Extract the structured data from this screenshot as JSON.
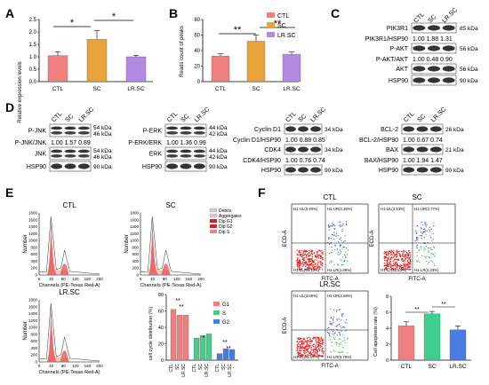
{
  "panels": {
    "A": {
      "letter": "A",
      "ylabel": "Relative expression levels",
      "yticks": [
        "0.0",
        "0.5",
        "1.0",
        "1.5",
        "2.0",
        "2.5"
      ],
      "categories": [
        "CTL",
        "SC",
        "LR.SC"
      ],
      "sig": [
        "*",
        "*"
      ]
    },
    "B": {
      "letter": "B",
      "ylabel": "Reads count of peaks",
      "yticks": [
        "0",
        "20",
        "40",
        "60",
        "80"
      ],
      "categories": [
        "CTL",
        "SC",
        "LR.SC"
      ],
      "legend": [
        "CTL",
        "SC",
        "LR.SC"
      ],
      "sig": [
        "**",
        "**"
      ]
    },
    "C": {
      "letter": "C",
      "lanes": [
        "CTL",
        "SC",
        "LR.SC"
      ],
      "rows": [
        {
          "label": "PIK3R1",
          "kda": "85 kDa"
        },
        {
          "label": "PIK3R1/HSP90",
          "values": "1.00  1.88  1.31"
        },
        {
          "label": "P-AKT",
          "kda": "56 kDa"
        },
        {
          "label": "P-AKT/AKT",
          "values": "1.00  0.48  0.90"
        },
        {
          "label": "AKT",
          "kda": "56 kDa"
        },
        {
          "label": "HSP90",
          "kda": "90 kDa"
        }
      ]
    },
    "D": {
      "letter": "D",
      "lanes": [
        "CTL",
        "SC",
        "LR.SC"
      ],
      "g1": {
        "rows": [
          {
            "label": "P-JNK",
            "kda": "54 kDa",
            "kda2": "46 kDa"
          },
          {
            "label": "P-JNK/JNK",
            "values": "1.00  1.57  0.89"
          },
          {
            "label": "JNK",
            "kda": "54 kDa",
            "kda2": "46 kDa"
          },
          {
            "label": "HSP90",
            "kda": "90 kDa"
          }
        ]
      },
      "g2": {
        "rows": [
          {
            "label": "P-ERK",
            "kda": "44 kDa",
            "kda2": "42 kDa"
          },
          {
            "label": "P-ERK/ERK",
            "values": "1.00  1.36  0.99"
          },
          {
            "label": "ERK",
            "kda": "44 kDa",
            "kda2": "42 kDa"
          },
          {
            "label": "HSP90",
            "kda": "90 kDa"
          }
        ]
      },
      "g3": {
        "rows": [
          {
            "label": "Cyclin D1",
            "kda": "34 kDa"
          },
          {
            "label": "Cyclin D1/HSP90",
            "values": "1.00  0.88  0.85"
          },
          {
            "label": "CDK4",
            "kda": "34 kDa"
          },
          {
            "label": "CDK4/HSP90",
            "values": "1.00  0.76  0.74"
          },
          {
            "label": "HSP90",
            "kda": "90 kDa"
          }
        ]
      },
      "g4": {
        "rows": [
          {
            "label": "BCL-2",
            "kda": "26 kDa"
          },
          {
            "label": "BCL-2/HSP90",
            "values": "1.00  0.67  0.74"
          },
          {
            "label": "BAX",
            "kda": "21 kDa"
          },
          {
            "label": "BAX/HSP90",
            "values": "1.00  1.94  1.47"
          },
          {
            "label": "HSP90",
            "kda": "90 kDa"
          }
        ]
      }
    },
    "E": {
      "letter": "E",
      "titles": [
        "CTL",
        "SC",
        "LR.SC"
      ],
      "ylabel": "Number",
      "xlabel": "Channels (PE-Texas Red-A)",
      "yticks": [
        "0",
        "200",
        "400",
        "600",
        "800",
        "1000",
        "1200",
        "1400",
        "1600",
        "1800"
      ],
      "xticks": [
        "0",
        "40",
        "80",
        "120",
        "160",
        "200"
      ],
      "legend": [
        "Debris",
        "Aggregates",
        "Dip G1",
        "Dip G2",
        "Dip S"
      ],
      "bar_ylabel": "cell cycle distribution (%)",
      "bar_yticks": [
        "0",
        "20",
        "40",
        "60",
        "80"
      ],
      "bar_legend": [
        "G1",
        "S",
        "G2"
      ],
      "bar_sig": [
        "**",
        "**",
        "*",
        "**",
        "**"
      ],
      "bar_xcats": [
        "CTL",
        "SC",
        "LR.SC"
      ]
    },
    "F": {
      "letter": "F",
      "titles": [
        "CTL",
        "SC",
        "LR.SC"
      ],
      "ylabel": "ECD-A",
      "xlabel": "FITC-A",
      "quadrants": [
        [
          "H1-UL(0.90%)",
          "H1-UR(2.26%)",
          "H1-LL(95.15%)",
          "H1-LR(1.69%)"
        ],
        [
          "H1-UL(2.53%)",
          "H1-UR(3.77%)",
          "H1-LL(91.33%)",
          "H1-LR(2.33%)"
        ],
        [
          "H1-UL(2.06%)",
          "H1-UR(2.59%)",
          "H1-LL(91.57%)",
          "H1-LR(0.79%)"
        ]
      ],
      "bar_ylabel": "Cell apoptosis rate (%)",
      "bar_yticks": [
        "0",
        "2",
        "4",
        "6",
        "8"
      ],
      "bar_sig": [
        "**",
        "**"
      ],
      "bar_xcats": [
        "CTL",
        "SC",
        "LR.SC"
      ]
    }
  },
  "colors": {
    "ctl": "#f08080",
    "sc": "#e8a33a",
    "lrsc": "#b48ae0",
    "g1": "#f08080",
    "s": "#4ec98a",
    "g2": "#4a7be0",
    "f_sc": "#3ecf8e",
    "f_lrsc": "#4a7be0"
  },
  "chart_data": [
    {
      "type": "bar",
      "panel": "A",
      "categories": [
        "CTL",
        "SC",
        "LR.SC"
      ],
      "values": [
        1.05,
        1.7,
        1.0
      ],
      "errors": [
        0.15,
        0.35,
        0.06
      ],
      "ylim": [
        0,
        2.5
      ],
      "ylabel": "Relative expression levels"
    },
    {
      "type": "bar",
      "panel": "B",
      "categories": [
        "CTL",
        "SC",
        "LR.SC"
      ],
      "values": [
        33,
        52,
        35
      ],
      "errors": [
        3,
        8,
        3
      ],
      "ylim": [
        0,
        80
      ],
      "ylabel": "Reads count of peaks"
    },
    {
      "type": "bar",
      "panel": "E",
      "categories": [
        "CTL",
        "SC",
        "LR.SC"
      ],
      "series": [
        {
          "name": "G1",
          "values": [
            62,
            55,
            55
          ]
        },
        {
          "name": "S",
          "values": [
            27,
            30,
            32
          ]
        },
        {
          "name": "G2",
          "values": [
            8,
            14,
            13
          ]
        }
      ],
      "ylim": [
        0,
        80
      ],
      "ylabel": "cell cycle distribution (%)"
    },
    {
      "type": "bar",
      "panel": "F",
      "categories": [
        "CTL",
        "SC",
        "LR.SC"
      ],
      "values": [
        4.3,
        5.8,
        3.8
      ],
      "errors": [
        0.5,
        0.3,
        0.5
      ],
      "ylim": [
        0,
        8
      ],
      "ylabel": "Cell apoptosis rate (%)"
    }
  ]
}
